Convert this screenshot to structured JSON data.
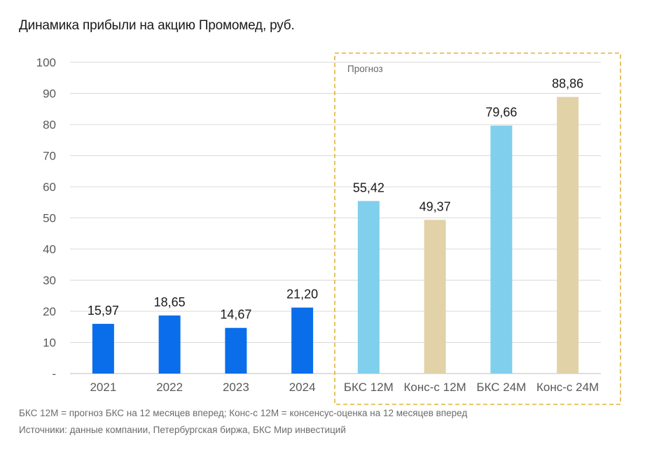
{
  "title": "Динамика прибыли на акцию Промомед, руб.",
  "footnotes": {
    "definitions": "БКС 12М = прогноз БКС на 12 месяцев вперед; Конс-с 12М = консенсус-оценка на 12 месяцев вперед",
    "sources": "Источники: данные компании, Петербургская биржа, БКС Мир инвестиций"
  },
  "chart_data": {
    "type": "bar",
    "title": "Динамика прибыли на акцию Промомед, руб.",
    "categories": [
      "2021",
      "2022",
      "2023",
      "2024",
      "БКС 12М",
      "Конс-с 12М",
      "БКС 24М",
      "Конс-с 24М"
    ],
    "values": [
      15.97,
      18.65,
      14.67,
      21.2,
      55.42,
      49.37,
      79.66,
      88.86
    ],
    "value_labels": [
      "15,97",
      "18,65",
      "14,67",
      "21,20",
      "55,42",
      "49,37",
      "79,66",
      "88,86"
    ],
    "bar_colors": [
      "#0A6EEB",
      "#0A6EEB",
      "#0A6EEB",
      "#0A6EEB",
      "#80CFEC",
      "#E2D2A8",
      "#80CFEC",
      "#E2D2A8"
    ],
    "ylim": [
      0,
      100
    ],
    "yticks": [
      "-",
      "10",
      "20",
      "30",
      "40",
      "50",
      "60",
      "70",
      "80",
      "90",
      "100"
    ],
    "grid": true,
    "forecast_box": {
      "label": "Прогноз",
      "border_color": "#E3B33C"
    }
  }
}
